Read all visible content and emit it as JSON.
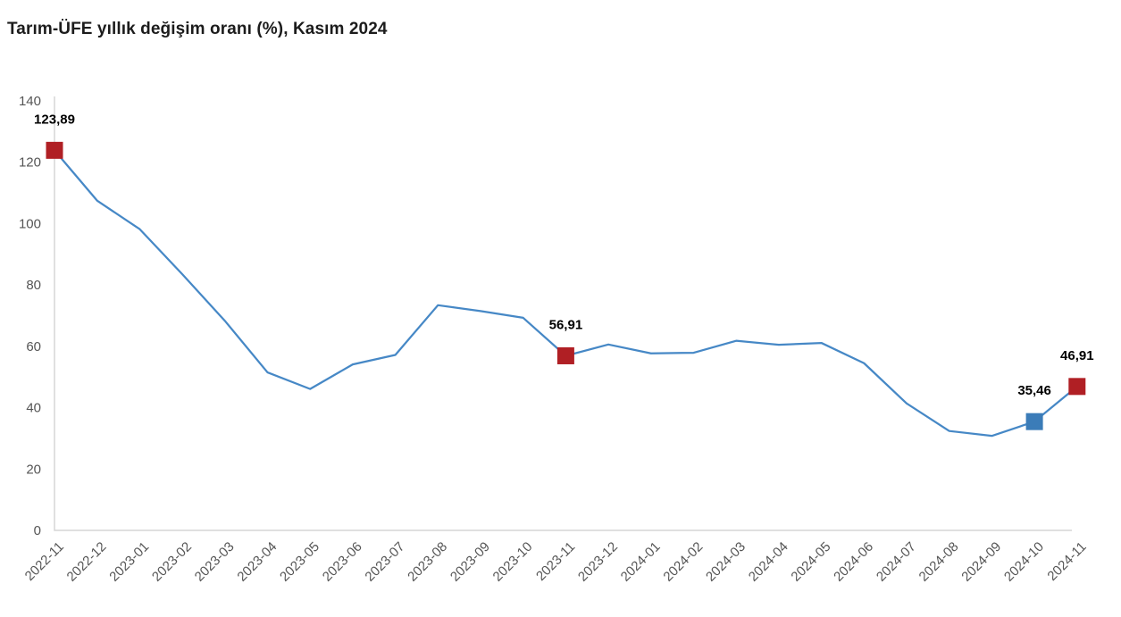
{
  "chart_data": {
    "type": "line",
    "title": "Tarım-ÜFE yıllık değişim oranı (%), Kasım 2024",
    "xlabel": "",
    "ylabel": "",
    "ylim": [
      0,
      140
    ],
    "y_ticks": [
      0,
      20,
      40,
      60,
      80,
      100,
      120,
      140
    ],
    "grid": false,
    "legend_position": "none",
    "x_tick_rotation": -45,
    "categories": [
      "2022-11",
      "2022-12",
      "2023-01",
      "2023-02",
      "2023-03",
      "2023-04",
      "2023-05",
      "2023-06",
      "2023-07",
      "2023-08",
      "2023-09",
      "2023-10",
      "2023-11",
      "2023-12",
      "2024-01",
      "2024-02",
      "2024-03",
      "2024-04",
      "2024-05",
      "2024-06",
      "2024-07",
      "2024-08",
      "2024-09",
      "2024-10",
      "2024-11"
    ],
    "values": [
      123.89,
      107.5,
      98.2,
      83.5,
      68.3,
      51.5,
      46.1,
      54.1,
      57.2,
      73.4,
      71.5,
      69.3,
      56.91,
      60.6,
      57.7,
      57.9,
      61.8,
      60.5,
      61.1,
      54.5,
      41.4,
      32.4,
      30.8,
      35.46,
      46.91
    ],
    "annotated_points": [
      {
        "category": "2022-11",
        "value": 123.89,
        "label": "123,89",
        "marker_color": "#b01f24"
      },
      {
        "category": "2023-11",
        "value": 56.91,
        "label": "56,91",
        "marker_color": "#b01f24"
      },
      {
        "category": "2024-10",
        "value": 35.46,
        "label": "35,46",
        "marker_color": "#3b7cb8"
      },
      {
        "category": "2024-11",
        "value": 46.91,
        "label": "46,91",
        "marker_color": "#b01f24"
      }
    ],
    "colors": {
      "line": "#4688c6",
      "marker_red": "#b01f24",
      "marker_blue": "#3b7cb8",
      "axis": "#d6d6d6",
      "tick_label": "#555555",
      "data_label": "#000000",
      "title": "#1c1c1c",
      "background": "#ffffff"
    }
  }
}
